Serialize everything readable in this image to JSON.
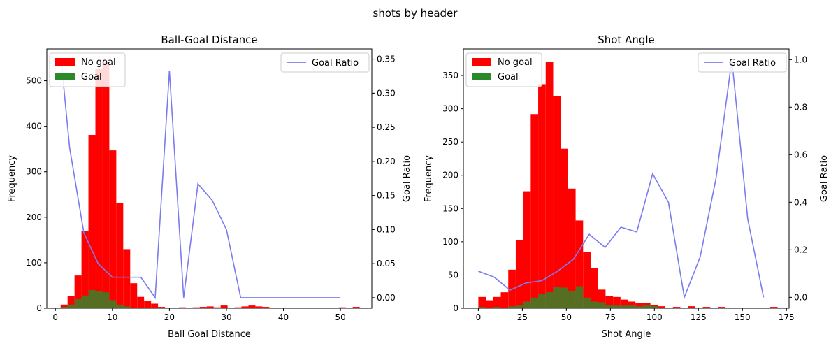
{
  "figure": {
    "title": "shots by header"
  },
  "colors": {
    "no_goal": "#ff0000",
    "goal": "#2a8a2a",
    "ratio": "#7b7bf0"
  },
  "chart_data": [
    {
      "type": "bar",
      "title": "Ball-Goal Distance",
      "xlabel": "Ball Goal Distance",
      "ylabel": "Frequency",
      "y2label": "Goal Ratio",
      "xlim": [
        -1.5,
        55.5
      ],
      "ylim": [
        0,
        570
      ],
      "y2lim": [
        -0.0155,
        0.365
      ],
      "xticks": [
        0,
        10,
        20,
        30,
        40,
        50
      ],
      "yticks": [
        0,
        100,
        200,
        300,
        400,
        500
      ],
      "y2ticks": [
        0.0,
        0.05,
        0.1,
        0.15,
        0.2,
        0.25,
        0.3,
        0.35
      ],
      "y2tick_labels": [
        "0.00",
        "0.05",
        "0.10",
        "0.15",
        "0.20",
        "0.25",
        "0.30",
        "0.35"
      ],
      "legend_left": {
        "position": "upper-left",
        "entries": [
          "No goal",
          "Goal"
        ]
      },
      "legend_right": {
        "position": "upper-right",
        "entries": [
          "Goal Ratio"
        ]
      },
      "bin_edges": [
        0.92,
        2.14,
        3.36,
        4.58,
        5.8,
        7.02,
        8.24,
        9.46,
        10.68,
        11.9,
        13.12,
        14.34,
        15.56,
        16.78,
        18.0,
        19.22,
        20.44,
        21.66,
        22.88,
        24.1,
        25.32,
        26.54,
        27.76,
        28.98,
        30.2,
        31.42,
        32.64,
        33.86,
        35.08,
        36.3,
        37.52,
        38.74,
        39.96,
        41.18,
        42.4,
        43.62,
        44.84,
        46.06,
        47.28,
        48.5,
        49.72,
        50.94,
        52.16,
        53.38
      ],
      "series": [
        {
          "name": "No goal",
          "values": [
            8,
            27,
            72,
            170,
            381,
            527,
            540,
            347,
            232,
            130,
            55,
            25,
            16,
            10,
            3,
            0,
            0,
            2,
            0,
            2,
            3,
            4,
            2,
            6,
            0,
            2,
            4,
            6,
            4,
            3,
            0,
            0,
            0,
            1,
            0,
            0,
            0,
            0,
            0,
            0,
            2,
            0,
            3
          ]
        },
        {
          "name": "Goal",
          "values": [
            3,
            8,
            20,
            28,
            40,
            38,
            35,
            18,
            8,
            4,
            1,
            0,
            0,
            0,
            0,
            0,
            0,
            0,
            0,
            0,
            0,
            0,
            0,
            0,
            0,
            0,
            0,
            0,
            0,
            0,
            0,
            0,
            0,
            0,
            0,
            0,
            0,
            0,
            0,
            0,
            0,
            0,
            0
          ]
        },
        {
          "name": "Goal Ratio",
          "x": [
            1,
            2.5,
            5,
            7.5,
            10,
            12.5,
            15,
            17.5,
            20,
            22.5,
            25,
            27.5,
            30,
            32.5,
            35,
            37.5,
            40,
            42.5,
            45,
            47.5,
            50
          ],
          "values": [
            0.35,
            0.22,
            0.095,
            0.05,
            0.03,
            0.03,
            0.03,
            0.0,
            0.333,
            0.0,
            0.167,
            0.143,
            0.1,
            0.0,
            0.0,
            0.0,
            0.0,
            0.0,
            0.0,
            0.0,
            0.0
          ]
        }
      ]
    },
    {
      "type": "bar",
      "title": "Shot Angle",
      "xlabel": "Shot Angle",
      "ylabel": "Frequency",
      "y2label": "Goal Ratio",
      "xlim": [
        -8.5,
        176.5
      ],
      "ylim": [
        0,
        390
      ],
      "y2lim": [
        -0.046,
        1.045
      ],
      "xticks": [
        0,
        25,
        50,
        75,
        100,
        125,
        150,
        175
      ],
      "yticks": [
        0,
        50,
        100,
        150,
        200,
        250,
        300,
        350
      ],
      "y2ticks": [
        0.0,
        0.2,
        0.4,
        0.6,
        0.8,
        1.0
      ],
      "y2tick_labels": [
        "0.0",
        "0.2",
        "0.4",
        "0.6",
        "0.8",
        "1.0"
      ],
      "legend_left": {
        "position": "upper-left",
        "entries": [
          "No goal",
          "Goal"
        ]
      },
      "legend_right": {
        "position": "upper-right",
        "entries": [
          "Goal Ratio"
        ]
      },
      "bin_edges": [
        0,
        4.25,
        8.5,
        12.75,
        17,
        21.25,
        25.5,
        29.75,
        34,
        38.25,
        42.5,
        46.75,
        51,
        55.25,
        59.5,
        63.75,
        68,
        72.25,
        76.5,
        80.75,
        85,
        89.25,
        93.5,
        97.75,
        102,
        106.25,
        110.5,
        114.75,
        119,
        123.25,
        127.5,
        131.75,
        136,
        140.25,
        144.5,
        148.75,
        153,
        157.25,
        161.5,
        165.75,
        170
      ],
      "series": [
        {
          "name": "No goal",
          "values": [
            17,
            12,
            17,
            24,
            58,
            103,
            176,
            292,
            337,
            370,
            319,
            240,
            180,
            132,
            85,
            61,
            28,
            18,
            17,
            13,
            10,
            8,
            8,
            5,
            3,
            1,
            2,
            1,
            3,
            0,
            2,
            1,
            2,
            1,
            1,
            1,
            0,
            1,
            0,
            2
          ]
        },
        {
          "name": "Goal",
          "values": [
            2,
            1,
            2,
            1,
            3,
            4,
            10,
            16,
            22,
            24,
            32,
            31,
            26,
            33,
            16,
            10,
            9,
            5,
            4,
            4,
            4,
            3,
            5,
            3,
            0,
            0,
            0,
            0,
            0,
            0,
            0,
            0,
            1,
            0,
            0,
            0,
            0,
            0,
            0,
            0
          ]
        },
        {
          "name": "Goal Ratio",
          "x": [
            0,
            9,
            18,
            27,
            36,
            45,
            54,
            63,
            72,
            81,
            90,
            99,
            108,
            117,
            126,
            135,
            144,
            153,
            162
          ],
          "values": [
            0.11,
            0.085,
            0.03,
            0.06,
            0.07,
            0.11,
            0.16,
            0.265,
            0.21,
            0.295,
            0.275,
            0.52,
            0.4,
            0.0,
            0.17,
            0.5,
            1.0,
            0.33,
            0.0
          ]
        }
      ]
    }
  ]
}
